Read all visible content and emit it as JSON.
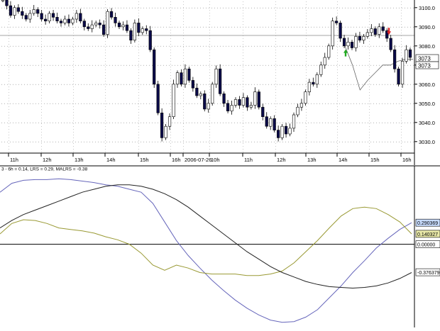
{
  "chart_data": [
    {
      "type": "candlestick",
      "y_ticks": [
        "3100.0",
        "3090.0",
        "3080.0",
        "3070.0",
        "3060.0",
        "3050.0",
        "3040.0",
        "3030.0"
      ],
      "y_tick_values": [
        3100,
        3090,
        3080,
        3070,
        3060,
        3050,
        3040,
        3030
      ],
      "ylim": [
        3024,
        3104
      ],
      "x_ticks": [
        "11h",
        "12h",
        "13h",
        "14h",
        "15h",
        "16h",
        "2006-07-26",
        "10h",
        "11h",
        "12h",
        "13h",
        "14h",
        "15h",
        "16h"
      ],
      "price_label_1": "3073",
      "price_label_2": "3073",
      "reference_level": 3085.8,
      "grid": true,
      "close_path": [
        3104,
        3101,
        3096,
        3100,
        3098,
        3096,
        3094,
        3097,
        3099,
        3097,
        3094,
        3093,
        3097,
        3095,
        3093,
        3092,
        3094,
        3092,
        3094,
        3097,
        3093,
        3090,
        3089,
        3091,
        3092,
        3091,
        3086,
        3098,
        3095,
        3092,
        3090,
        3091,
        3088,
        3083,
        3092,
        3087,
        3089,
        3088,
        3078,
        3060,
        3045,
        3032,
        3038,
        3043,
        3060,
        3066,
        3060,
        3068,
        3062,
        3058,
        3054,
        3055,
        3047,
        3050,
        3060,
        3068,
        3055,
        3050,
        3046,
        3049,
        3052,
        3049,
        3053,
        3048,
        3049,
        3056,
        3048,
        3043,
        3038,
        3042,
        3036,
        3032,
        3038,
        3034,
        3037,
        3044,
        3048,
        3050,
        3056,
        3061,
        3060,
        3065,
        3070,
        3074,
        3080,
        3093,
        3092,
        3084,
        3080,
        3082,
        3079,
        3085,
        3083,
        3085,
        3087,
        3089,
        3086,
        3090,
        3088,
        3084,
        3078,
        3068,
        3060,
        3072,
        3078,
        3074
      ],
      "stop_line": [
        3080,
        3070,
        3057,
        3062,
        3066,
        3070,
        3070,
        3072,
        3073,
        3073
      ],
      "markers": [
        {
          "type": "buy-arrow",
          "color": "#22aa22"
        },
        {
          "type": "sell-arrow",
          "color": "#dd2222"
        }
      ]
    },
    {
      "type": "line",
      "header": "3 - 6h = 0.14, LRS = 0.29, MALRS = -0.38",
      "ylim": [
        -1.1,
        0.95
      ],
      "y_labels": [
        {
          "text": "0.290369",
          "value": 0.290369,
          "color": "#c8dcff"
        },
        {
          "text": "0.140327",
          "value": 0.140327,
          "color": "#e8e8a8"
        },
        {
          "text": "0.00000",
          "value": 0.0,
          "color": "#ffffff"
        },
        {
          "text": "-0.376379",
          "value": -0.376379,
          "color": "#ffffff"
        }
      ],
      "zero_line": 0.0,
      "series": [
        {
          "color": "#6666bb",
          "values": [
            0.7,
            0.82,
            0.86,
            0.87,
            0.87,
            0.88,
            0.87,
            0.85,
            0.83,
            0.8,
            0.78,
            0.74,
            0.7,
            0.55,
            0.3,
            0.05,
            -0.15,
            -0.32,
            -0.48,
            -0.62,
            -0.75,
            -0.86,
            -0.95,
            -1.02,
            -1.05,
            -1.04,
            -0.98,
            -0.88,
            -0.72,
            -0.56,
            -0.38,
            -0.22,
            -0.05,
            0.08,
            0.2,
            0.29
          ]
        },
        {
          "color": "#999933",
          "values": [
            0.14,
            0.28,
            0.33,
            0.32,
            0.28,
            0.22,
            0.2,
            0.18,
            0.15,
            0.1,
            0.06,
            0.0,
            -0.12,
            -0.28,
            -0.35,
            -0.28,
            -0.32,
            -0.38,
            -0.4,
            -0.4,
            -0.4,
            -0.42,
            -0.42,
            -0.4,
            -0.36,
            -0.25,
            -0.1,
            0.05,
            0.22,
            0.38,
            0.48,
            0.5,
            0.48,
            0.4,
            0.3,
            0.14
          ]
        },
        {
          "color": "#222222",
          "values": [
            0.22,
            0.32,
            0.4,
            0.46,
            0.52,
            0.58,
            0.64,
            0.7,
            0.74,
            0.78,
            0.8,
            0.8,
            0.78,
            0.74,
            0.68,
            0.6,
            0.5,
            0.38,
            0.26,
            0.14,
            0.02,
            -0.1,
            -0.2,
            -0.3,
            -0.38,
            -0.44,
            -0.5,
            -0.54,
            -0.57,
            -0.58,
            -0.59,
            -0.58,
            -0.56,
            -0.52,
            -0.46,
            -0.38
          ]
        }
      ]
    }
  ]
}
